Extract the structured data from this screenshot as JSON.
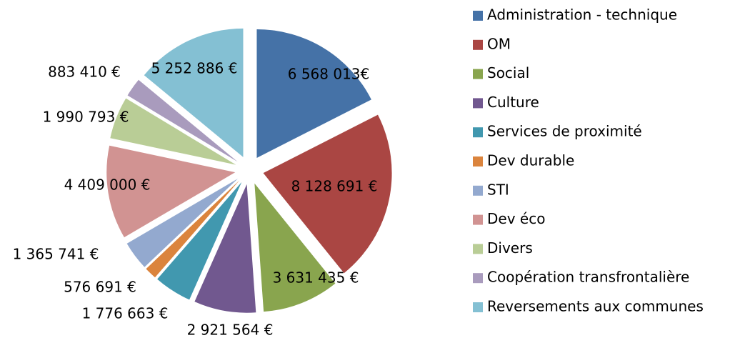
{
  "chart_data": {
    "type": "pie",
    "categories": [
      "Administration - technique",
      "OM",
      "Social",
      "Culture",
      "Services de proximité",
      "Dev durable",
      "STI",
      "Dev éco",
      "Divers",
      "Coopération transfrontalière",
      "Reversements aux communes"
    ],
    "values": [
      6568013,
      8128691,
      3631435,
      2921564,
      1776663,
      576691,
      1365741,
      4409000,
      1990793,
      883410,
      5252886
    ],
    "value_labels": [
      "6 568 013€",
      "8 128 691 €",
      "3 631 435 €",
      "2 921 564 €",
      "1 776 663 €",
      "576 691 €",
      "1 365 741 €",
      "4 409 000 €",
      "1 990 793 €",
      "883 410 €",
      "5 252 886 €"
    ],
    "colors": [
      "#4572a7",
      "#aa4643",
      "#89a54e",
      "#71588f",
      "#4198af",
      "#db843d",
      "#93a9cf",
      "#d19392",
      "#b9cd96",
      "#a99bbd",
      "#84c0d3"
    ],
    "legend": "right"
  }
}
